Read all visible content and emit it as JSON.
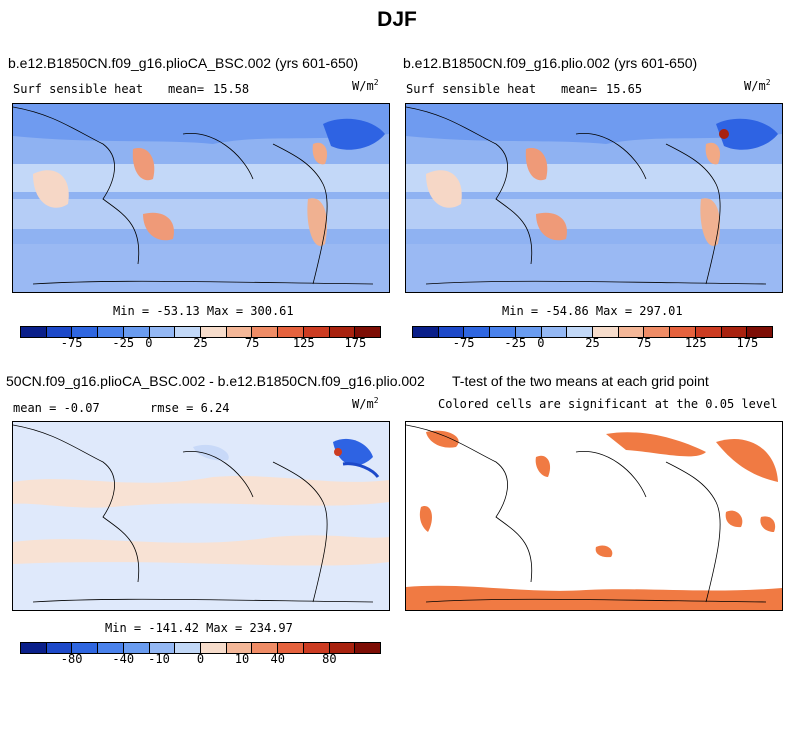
{
  "title": "DJF",
  "panels": [
    {
      "id": "p1",
      "case_title": "b.e12.B1850CN.f09_g16.plioCA_BSC.002 (yrs 601-650)",
      "var_label": "Surf sensible heat",
      "stat_label": "mean=",
      "stat_value": "15.58",
      "units": "W/m",
      "units_exp": "2",
      "minmax": "Min = -53.13 Max = 300.61"
    },
    {
      "id": "p2",
      "case_title": "b.e12.B1850CN.f09_g16.plio.002 (yrs 601-650)",
      "var_label": "Surf sensible heat",
      "stat_label": "mean=",
      "stat_value": "15.65",
      "units": "W/m",
      "units_exp": "2",
      "minmax": "Min = -54.86 Max = 297.01"
    },
    {
      "id": "p3",
      "case_title": "50CN.f09_g16.plioCA_BSC.002 - b.e12.B1850CN.f09_g16.plio.002",
      "mean_text": "mean =  -0.07",
      "rmse_text": "rmse =   6.24",
      "units": "W/m",
      "units_exp": "2",
      "minmax": "Min = -141.42 Max = 234.97"
    },
    {
      "id": "p4",
      "case_title": "T-test of the two means at each grid point",
      "subtitle": "Colored cells are significant at the 0.05 level"
    }
  ],
  "colorbar_colors": [
    "#0a1f8a",
    "#1d49c9",
    "#2f66e0",
    "#4a82ec",
    "#6a9cf0",
    "#94b8f4",
    "#c2d8f7",
    "#f6dccb",
    "#f4b798",
    "#ef8c66",
    "#e5623e",
    "#cc3c22",
    "#a8220f",
    "#7d0d05"
  ],
  "colorbar_top_ticks": [
    "-75",
    "-25",
    "0",
    "25",
    "75",
    "125",
    "175"
  ],
  "colorbar_bottom_ticks": [
    "-80",
    "-40",
    "-10",
    "0",
    "10",
    "40",
    "80"
  ],
  "significance_color": "#f07a43"
}
